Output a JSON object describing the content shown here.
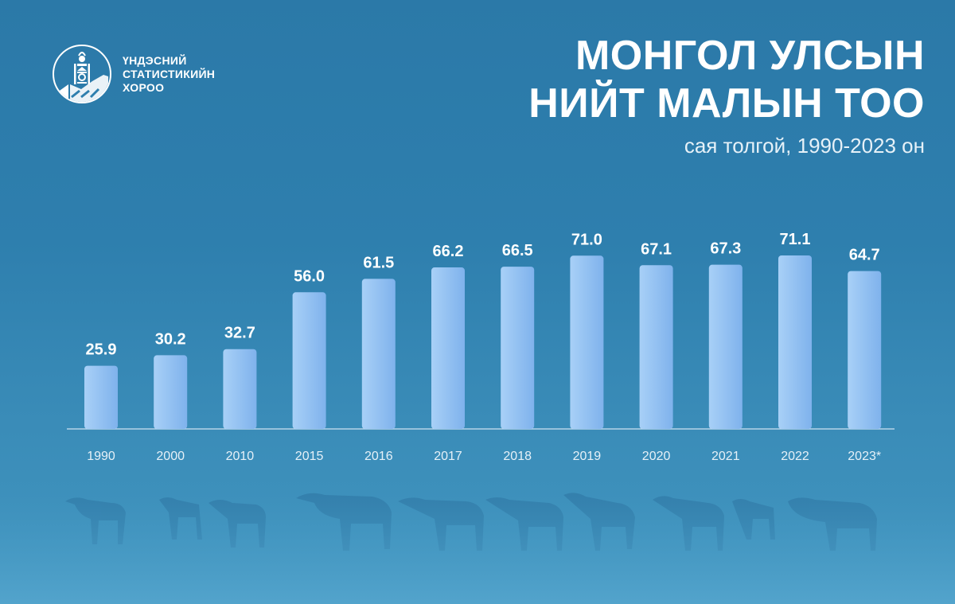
{
  "logo": {
    "org_lines": [
      "ҮНДЭСНИЙ",
      "СТАТИСТИКИЙН",
      "ХОРОО"
    ]
  },
  "title": {
    "line1": "МОНГОЛ УЛСЫН",
    "line2": "НИЙТ МАЛЫН ТОО"
  },
  "subtitle": "сая толгой, 1990-2023 он",
  "colors": {
    "background": "#2e7fae",
    "bar_light": "#a8d0f7",
    "bar_dark": "#7fb2ec",
    "text": "#ffffff",
    "axis": "#cfe3f1"
  },
  "chart_data": {
    "type": "bar",
    "categories": [
      "1990",
      "2000",
      "2010",
      "2015",
      "2016",
      "2017",
      "2018",
      "2019",
      "2020",
      "2021",
      "2022",
      "2023*"
    ],
    "values": [
      25.9,
      30.2,
      32.7,
      56.0,
      61.5,
      66.2,
      66.5,
      71.0,
      67.1,
      67.3,
      71.1,
      64.7
    ],
    "value_labels": [
      "25.9",
      "30.2",
      "32.7",
      "56.0",
      "61.5",
      "66.2",
      "66.5",
      "71.0",
      "67.1",
      "67.3",
      "71.1",
      "64.7"
    ],
    "title": "МОНГОЛ УЛСЫН НИЙТ МАЛЫН ТОО",
    "subtitle": "сая толгой, 1990-2023 он",
    "xlabel": "",
    "ylabel": "",
    "ylim": [
      0,
      100
    ],
    "grid": false,
    "legend": "none"
  }
}
